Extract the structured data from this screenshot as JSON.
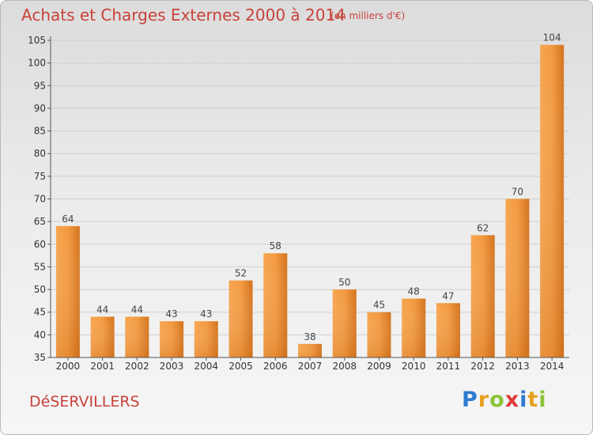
{
  "title": "Achats et Charges Externes 2000 à 2014",
  "unit": "(en milliers d'€)",
  "commune": "DéSERVILLERS",
  "logo": {
    "text": "Proxiti",
    "colors": [
      "#2e7bd1",
      "#e8a020",
      "#8bc33a",
      "#e03a3a",
      "#2e7bd1",
      "#e8a020",
      "#8bc33a"
    ]
  },
  "colors": {
    "bar_light": "#f6a54f",
    "bar_dark": "#d4731d",
    "text_accent": "#c8423b"
  },
  "chart_data": {
    "type": "bar",
    "categories": [
      "2000",
      "2001",
      "2002",
      "2003",
      "2004",
      "2005",
      "2006",
      "2007",
      "2008",
      "2009",
      "2010",
      "2011",
      "2012",
      "2013",
      "2014"
    ],
    "values": [
      64,
      44,
      44,
      43,
      43,
      52,
      58,
      38,
      50,
      45,
      48,
      47,
      62,
      70,
      104
    ],
    "ylim": [
      35,
      105
    ],
    "yticks": [
      35,
      40,
      45,
      50,
      55,
      60,
      65,
      70,
      75,
      80,
      85,
      90,
      95,
      100,
      105
    ],
    "grid": true
  }
}
